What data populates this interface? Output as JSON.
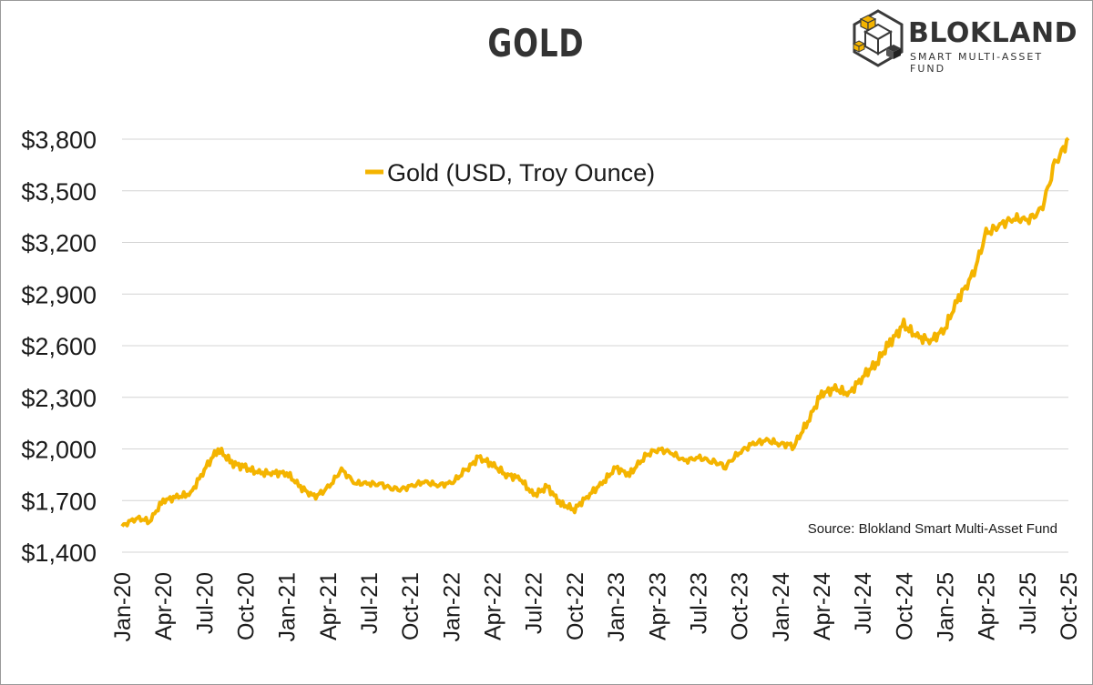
{
  "brand": {
    "name": "BLOKLAND",
    "tagline": "SMART MULTI-ASSET FUND",
    "colors": {
      "cube_yellow": "#f4b400",
      "cube_dark": "#3a3a3a"
    }
  },
  "chart_data": {
    "type": "line",
    "title": "GOLD",
    "xlabel": "",
    "ylabel": "",
    "y_tick_labels": [
      "$1,400",
      "$1,700",
      "$2,000",
      "$2,300",
      "$2,600",
      "$2,900",
      "$3,200",
      "$3,500",
      "$3,800"
    ],
    "y_ticks": [
      1400,
      1700,
      2000,
      2300,
      2600,
      2900,
      3200,
      3500,
      3800
    ],
    "ylim": [
      1400,
      3800
    ],
    "x_tick_labels": [
      "Jan-20",
      "Apr-20",
      "Jul-20",
      "Oct-20",
      "Jan-21",
      "Apr-21",
      "Jul-21",
      "Oct-21",
      "Jan-22",
      "Apr-22",
      "Jul-22",
      "Oct-22",
      "Jan-23",
      "Apr-23",
      "Jul-23",
      "Oct-23",
      "Jan-24",
      "Apr-24",
      "Jul-24",
      "Oct-24",
      "Jan-25",
      "Apr-25",
      "Jul-25",
      "Oct-25"
    ],
    "xlim": [
      "2020-01",
      "2025-10"
    ],
    "grid": "horizontal",
    "legend_position": "top-left",
    "annotation": "Source: Blokland Smart Multi-Asset Fund",
    "series": [
      {
        "name": "Gold (USD, Troy Ounce)",
        "color": "#f4b400",
        "x": [
          "2020-01",
          "2020-02",
          "2020-03",
          "2020-04",
          "2020-05",
          "2020-06",
          "2020-07",
          "2020-08",
          "2020-09",
          "2020-10",
          "2020-11",
          "2020-12",
          "2021-01",
          "2021-02",
          "2021-03",
          "2021-04",
          "2021-05",
          "2021-06",
          "2021-07",
          "2021-08",
          "2021-09",
          "2021-10",
          "2021-11",
          "2021-12",
          "2022-01",
          "2022-02",
          "2022-03",
          "2022-04",
          "2022-05",
          "2022-06",
          "2022-07",
          "2022-08",
          "2022-09",
          "2022-10",
          "2022-11",
          "2022-12",
          "2023-01",
          "2023-02",
          "2023-03",
          "2023-04",
          "2023-05",
          "2023-06",
          "2023-07",
          "2023-08",
          "2023-09",
          "2023-10",
          "2023-11",
          "2023-12",
          "2024-01",
          "2024-02",
          "2024-03",
          "2024-04",
          "2024-05",
          "2024-06",
          "2024-07",
          "2024-08",
          "2024-09",
          "2024-10",
          "2024-11",
          "2024-12",
          "2025-01",
          "2025-02",
          "2025-03",
          "2025-04",
          "2025-05",
          "2025-06",
          "2025-07",
          "2025-08",
          "2025-09",
          "2025-10"
        ],
        "values": [
          1550,
          1600,
          1580,
          1700,
          1720,
          1740,
          1880,
          2000,
          1920,
          1890,
          1860,
          1860,
          1860,
          1780,
          1720,
          1770,
          1880,
          1800,
          1800,
          1790,
          1760,
          1780,
          1810,
          1790,
          1800,
          1870,
          1950,
          1910,
          1850,
          1830,
          1730,
          1780,
          1680,
          1650,
          1730,
          1800,
          1890,
          1850,
          1950,
          2000,
          1980,
          1930,
          1950,
          1930,
          1900,
          1980,
          2030,
          2050,
          2030,
          2020,
          2160,
          2320,
          2350,
          2320,
          2420,
          2500,
          2620,
          2720,
          2650,
          2630,
          2700,
          2880,
          3000,
          3250,
          3300,
          3340,
          3330,
          3380,
          3650,
          3800
        ]
      }
    ]
  }
}
